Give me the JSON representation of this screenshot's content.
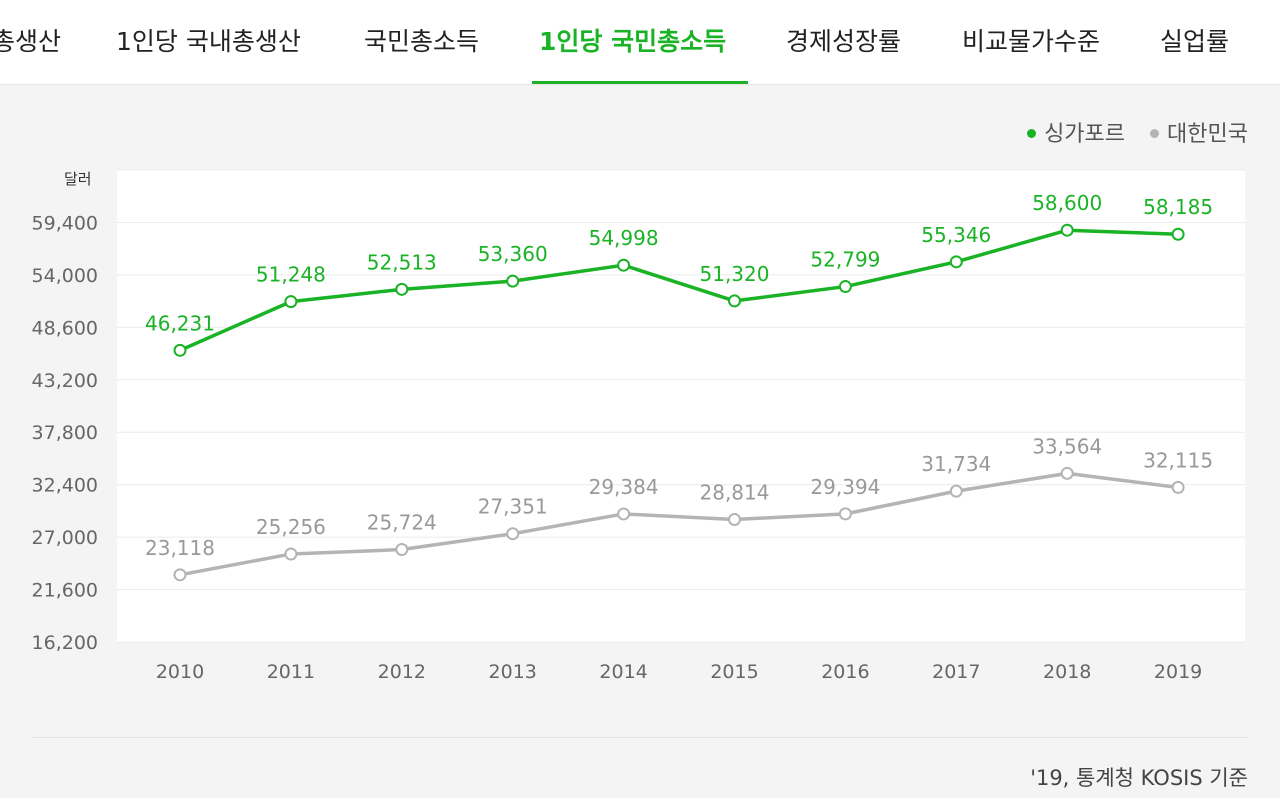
{
  "tabs": [
    {
      "label": "국내총생산",
      "active": false
    },
    {
      "label": "1인당 국내총생산",
      "active": false
    },
    {
      "label": "국민총소득",
      "active": false
    },
    {
      "label": "1인당 국민총소득",
      "active": true
    },
    {
      "label": "경제성장률",
      "active": false
    },
    {
      "label": "비교물가수준",
      "active": false
    },
    {
      "label": "실업률",
      "active": false
    }
  ],
  "legend": [
    {
      "label": "싱가포르",
      "color": "#19b325"
    },
    {
      "label": "대한민국",
      "color": "#b4b4b4"
    }
  ],
  "source": "'19, 통계청 KOSIS 기준",
  "chart_data": {
    "type": "line",
    "ylabel": "달러",
    "ylim": [
      16200,
      64800
    ],
    "yticks": [
      "16,200",
      "21,600",
      "27,000",
      "32,400",
      "37,800",
      "43,200",
      "48,600",
      "54,000",
      "59,400"
    ],
    "x": [
      "2010",
      "2011",
      "2012",
      "2013",
      "2014",
      "2015",
      "2016",
      "2017",
      "2018",
      "2019"
    ],
    "series": [
      {
        "name": "싱가포르",
        "color": "#19b325",
        "label_color": "#19b325",
        "values": [
          46231,
          51248,
          52513,
          53360,
          54998,
          51320,
          52799,
          55346,
          58600,
          58185
        ],
        "labels": [
          "46,231",
          "51,248",
          "52,513",
          "53,360",
          "54,998",
          "51,320",
          "52,799",
          "55,346",
          "58,600",
          "58,185"
        ]
      },
      {
        "name": "대한민국",
        "color": "#b4b4b4",
        "label_color": "#999999",
        "values": [
          23118,
          25256,
          25724,
          27351,
          29384,
          28814,
          29394,
          31734,
          33564,
          32115
        ],
        "labels": [
          "23,118",
          "25,256",
          "25,724",
          "27,351",
          "29,384",
          "28,814",
          "29,394",
          "31,734",
          "33,564",
          "32,115"
        ]
      }
    ],
    "grid": true,
    "legend_position": "top-right"
  }
}
